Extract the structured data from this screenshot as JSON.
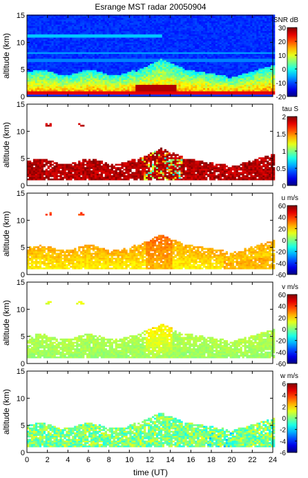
{
  "figure": {
    "title": "Esrange MST radar 20050904",
    "xlabel": "time (UT)",
    "ylabel": "altitude (km)"
  },
  "chart_data": [
    {
      "type": "heatmap",
      "quantity": "SNR",
      "colorbar_label": "SNR dB",
      "x_range": [
        0,
        24
      ],
      "y_range": [
        0,
        15
      ],
      "c_range": [
        -20,
        30
      ],
      "colorbar_ticks": [
        -20,
        -10,
        0,
        10,
        20,
        30
      ],
      "y_ticks": [
        0,
        5,
        10,
        15
      ],
      "colormap": "jet"
    },
    {
      "type": "heatmap",
      "quantity": "tau",
      "colorbar_label": "tau S",
      "x_range": [
        0,
        24
      ],
      "y_range": [
        0,
        15
      ],
      "c_range": [
        0,
        2
      ],
      "colorbar_ticks": [
        0,
        0.5,
        1,
        1.5,
        2
      ],
      "y_ticks": [
        0,
        5,
        10,
        15
      ],
      "colormap": "jet"
    },
    {
      "type": "heatmap",
      "quantity": "u",
      "colorbar_label": "u m/s",
      "x_range": [
        0,
        24
      ],
      "y_range": [
        0,
        15
      ],
      "c_range": [
        -60,
        60
      ],
      "colorbar_ticks": [
        -60,
        -40,
        -20,
        0,
        20,
        40,
        60
      ],
      "y_ticks": [
        0,
        5,
        10,
        15
      ],
      "colormap": "jet"
    },
    {
      "type": "heatmap",
      "quantity": "v",
      "colorbar_label": "v m/s",
      "x_range": [
        0,
        24
      ],
      "y_range": [
        0,
        15
      ],
      "c_range": [
        -60,
        60
      ],
      "colorbar_ticks": [
        -60,
        -40,
        -20,
        0,
        20,
        40,
        60
      ],
      "y_ticks": [
        0,
        5,
        10,
        15
      ],
      "colormap": "jet"
    },
    {
      "type": "heatmap",
      "quantity": "w",
      "colorbar_label": "w m/s",
      "x_range": [
        0,
        24
      ],
      "y_range": [
        0,
        15
      ],
      "c_range": [
        -6,
        6
      ],
      "colorbar_ticks": [
        -6,
        -4,
        -2,
        0,
        2,
        4,
        6
      ],
      "y_ticks": [
        0,
        5,
        10,
        15
      ],
      "x_ticks": [
        0,
        2,
        4,
        6,
        8,
        10,
        12,
        14,
        16,
        18,
        20,
        22,
        24
      ],
      "colormap": "jet"
    }
  ]
}
